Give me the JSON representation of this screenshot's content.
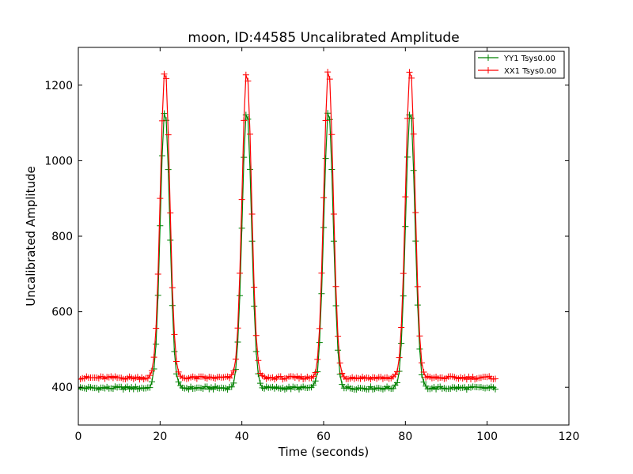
{
  "chart_data": {
    "type": "line",
    "title": "moon, ID:44585 Uncalibrated Amplitude",
    "xlabel": "Time (seconds)",
    "ylabel": "Uncalibrated Amplitude",
    "xlim": [
      0,
      120
    ],
    "ylim": [
      300,
      1300
    ],
    "xticks": [
      0,
      20,
      40,
      60,
      80,
      100,
      120
    ],
    "yticks": [
      400,
      600,
      800,
      1000,
      1200
    ],
    "x_range": [
      0,
      102
    ],
    "sample_step": 0.5,
    "marker": "+",
    "grid": false,
    "legend_position": "top-right",
    "series": [
      {
        "name": "YY1 Tsys0.00",
        "color": "#008000",
        "baseline": 398,
        "peak_centers": [
          21.2,
          41.2,
          61.2,
          81.2
        ],
        "peak_values": [
          1135,
          1133,
          1133,
          1135
        ],
        "peak_width_sigma": 1.15
      },
      {
        "name": "XX1 Tsys0.00",
        "color": "#ff0000",
        "baseline": 425,
        "peak_centers": [
          21.2,
          41.2,
          61.2,
          81.2
        ],
        "peak_values": [
          1245,
          1242,
          1245,
          1248
        ],
        "peak_width_sigma": 1.15
      }
    ]
  }
}
